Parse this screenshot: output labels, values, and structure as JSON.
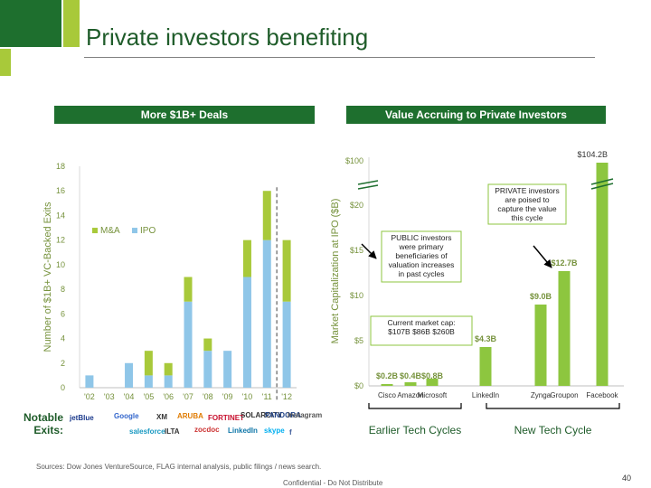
{
  "slide": {
    "title": "Private investors benefiting",
    "left_header": "More $1B+ Deals",
    "right_header": "Value Accruing to Private Investors",
    "notable_exits_label": "Notable Exits:",
    "sources": "Sources: Dow Jones VentureSource, FLAG internal analysis, public filings / news search.",
    "confidential": "Confidential - Do Not Distribute",
    "page_number": "40",
    "colors": {
      "dark_green": "#1e6f2e",
      "light_green": "#a8c93a",
      "light_blue": "#8fc6e8",
      "bright_green": "#8dc63f"
    }
  },
  "logos": [
    {
      "name": "jetblue",
      "text": "jetBlue",
      "color": "#1b3a8c"
    },
    {
      "name": "google",
      "text": "Google",
      "color": "#3366cc"
    },
    {
      "name": "xm",
      "text": "XM",
      "color": "#333333"
    },
    {
      "name": "aruba",
      "text": "ARUBA",
      "color": "#e07b00"
    },
    {
      "name": "fortinet",
      "text": "FORTINET",
      "color": "#c8102e"
    },
    {
      "name": "solarcity",
      "text": "SOLARCITY",
      "color": "#333333"
    },
    {
      "name": "pandora",
      "text": "PANDORA",
      "color": "#224488"
    },
    {
      "name": "instagram",
      "text": "Instagram",
      "color": "#555555"
    },
    {
      "name": "salesforce",
      "text": "salesforce",
      "color": "#1798c1"
    },
    {
      "name": "ilta",
      "text": "ILTA",
      "color": "#333333"
    },
    {
      "name": "zocdoc",
      "text": "zocdoc",
      "color": "#cc3333"
    },
    {
      "name": "linkedin",
      "text": "LinkedIn",
      "color": "#0e76a8"
    },
    {
      "name": "skype",
      "text": "skype",
      "color": "#00aff0"
    },
    {
      "name": "facebook",
      "text": "f",
      "color": "#3b5998"
    }
  ],
  "chart_data": [
    {
      "type": "bar",
      "stacked": true,
      "ylabel": "Number of $1B+ VC-Backed Exits",
      "categories": [
        "'02",
        "'03",
        "'04",
        "'05",
        "'06",
        "'07",
        "'08",
        "'09",
        "'10",
        "'11",
        "'12"
      ],
      "yticks": [
        "0",
        "2",
        "4",
        "6",
        "8",
        "10",
        "12",
        "14",
        "16",
        "18"
      ],
      "ylim": [
        0,
        18
      ],
      "series": [
        {
          "name": "IPO",
          "color": "#8fc6e8",
          "values": [
            1,
            0,
            2,
            1,
            1,
            7,
            3,
            3,
            9,
            12,
            7
          ]
        },
        {
          "name": "M&A",
          "color": "#a8c93a",
          "values": [
            0,
            0,
            0,
            2,
            1,
            2,
            1,
            0,
            3,
            4,
            5
          ]
        }
      ],
      "legend": "upper-left",
      "dashed_line_after": "'11"
    },
    {
      "type": "bar",
      "ylabel": "Market Capitalization at IPO ($B)",
      "yticks": [
        "$0",
        "$5",
        "$10",
        "$15",
        "$20",
        "$100"
      ],
      "categories": [
        "Cisco",
        "Amazon",
        "Microsoft",
        "LinkedIn",
        "Zynga",
        "Groupon",
        "Facebook"
      ],
      "values": [
        0.2,
        0.4,
        0.8,
        4.3,
        9.0,
        12.7,
        104.2
      ],
      "data_labels": [
        "$0.2B",
        "$0.4B",
        "$0.8B",
        "$4.3B",
        "$9.0B",
        "$12.7B",
        "$104.2B"
      ],
      "color": "#8dc63f",
      "groups": [
        {
          "label": "Earlier Tech Cycles",
          "members": [
            "Cisco",
            "Amazon",
            "Microsoft"
          ]
        },
        {
          "label": "New Tech Cycle",
          "members": [
            "LinkedIn",
            "Zynga",
            "Groupon",
            "Facebook"
          ]
        }
      ],
      "annotations": [
        {
          "text_lines": [
            "PRIVATE investors",
            "are poised to",
            "capture the value",
            "this cycle"
          ]
        },
        {
          "text_lines": [
            "PUBLIC investors",
            "were primary",
            "beneficiaries of",
            "valuation increases",
            "in past cycles"
          ]
        },
        {
          "text_lines": [
            "Current market cap:",
            "$107B  $86B  $260B"
          ]
        }
      ]
    }
  ]
}
